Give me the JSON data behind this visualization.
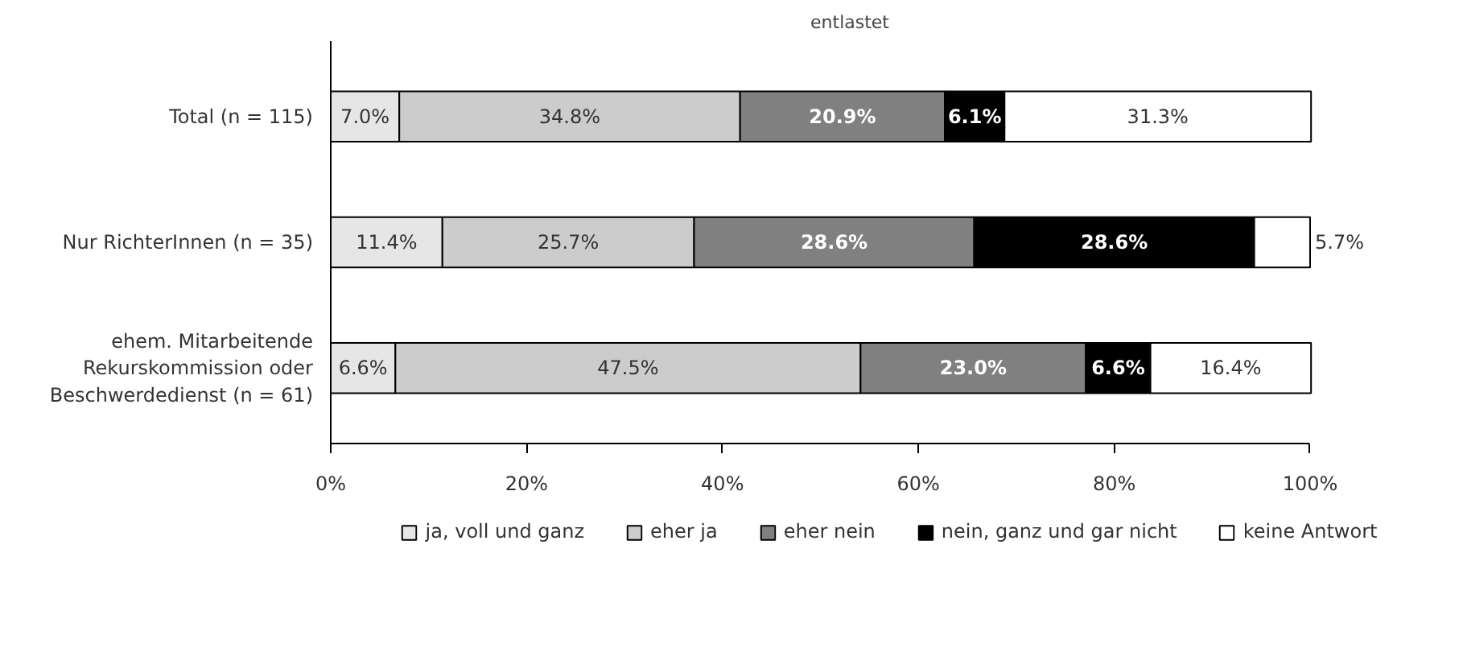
{
  "chart_data": {
    "type": "bar",
    "orientation": "horizontal",
    "stacked": true,
    "title": "entlastet",
    "categories": [
      "Total (n = 115)",
      "Nur RichterInnen (n = 35)",
      "ehem. Mitarbeitende\nRekurskommission oder\nBeschwerdedienst (n = 61)"
    ],
    "series": [
      {
        "name": "ja, voll und ganz",
        "color": "#e6e6e6",
        "values": [
          7.0,
          11.4,
          6.6
        ]
      },
      {
        "name": "eher ja",
        "color": "#cccccc",
        "values": [
          34.8,
          25.7,
          47.5
        ]
      },
      {
        "name": "eher nein",
        "color": "#808080",
        "values": [
          20.9,
          28.6,
          23.0
        ]
      },
      {
        "name": "nein, ganz und gar nicht",
        "color": "#000000",
        "values": [
          6.1,
          28.6,
          6.6
        ]
      },
      {
        "name": "keine Antwort",
        "color": "#ffffff",
        "values": [
          31.3,
          5.7,
          16.4
        ]
      }
    ],
    "xlim": [
      0,
      100
    ],
    "xticks": [
      {
        "value": 0,
        "label": "0%"
      },
      {
        "value": 20,
        "label": "20%"
      },
      {
        "value": 40,
        "label": "40%"
      },
      {
        "value": 60,
        "label": "60%"
      },
      {
        "value": 80,
        "label": "80%"
      },
      {
        "value": 100,
        "label": "100%"
      }
    ],
    "value_labels": [
      [
        "7.0%",
        "11.4%",
        "6.6%"
      ],
      [
        "34.8%",
        "25.7%",
        "47.5%"
      ],
      [
        "20.9%",
        "28.6%",
        "23.0%"
      ],
      [
        "6.1%",
        "28.6%",
        "6.6%"
      ],
      [
        "31.3%",
        "5.7%",
        "16.4%"
      ]
    ],
    "grid": false,
    "legend": "bottom"
  }
}
